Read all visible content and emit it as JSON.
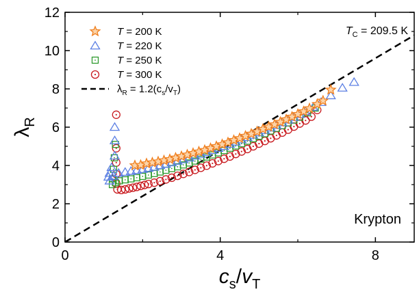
{
  "chart_data": {
    "type": "scatter",
    "xlim": [
      0,
      9
    ],
    "ylim": [
      0,
      12
    ],
    "x_ticks": [
      {
        "value": 0,
        "label": "0"
      },
      {
        "value": 4,
        "label": "4"
      },
      {
        "value": 8,
        "label": "8"
      }
    ],
    "y_ticks": [
      {
        "value": 0,
        "label": "0"
      },
      {
        "value": 2,
        "label": "2"
      },
      {
        "value": 4,
        "label": "4"
      },
      {
        "value": 6,
        "label": "6"
      },
      {
        "value": 8,
        "label": "8"
      },
      {
        "value": 10,
        "label": "10"
      },
      {
        "value": 12,
        "label": "12"
      }
    ],
    "xlabel": {
      "main": "c",
      "sub": "s",
      "sep": "/",
      "main2": "v",
      "sub2": "T"
    },
    "ylabel": {
      "main": "λ",
      "sub": "R"
    },
    "annotation_tc": {
      "var": "T",
      "sub": "C",
      "rest": " = 209.5 K"
    },
    "annotation_name": "Krypton",
    "legend_position": "top-left",
    "series": [
      {
        "name": "T = 200 K",
        "label_var": "T",
        "label_rest": " = 200 K",
        "marker": "star",
        "color": "#f07f1e",
        "fill": "#fbd3a8",
        "points": [
          [
            1.8,
            4.0
          ],
          [
            1.95,
            4.02
          ],
          [
            2.1,
            4.1
          ],
          [
            2.25,
            4.15
          ],
          [
            2.4,
            4.2
          ],
          [
            2.55,
            4.26
          ],
          [
            2.7,
            4.32
          ],
          [
            2.85,
            4.4
          ],
          [
            3.0,
            4.48
          ],
          [
            3.15,
            4.56
          ],
          [
            3.3,
            4.64
          ],
          [
            3.45,
            4.72
          ],
          [
            3.6,
            4.8
          ],
          [
            3.75,
            4.9
          ],
          [
            3.9,
            5.0
          ],
          [
            4.05,
            5.1
          ],
          [
            4.2,
            5.2
          ],
          [
            4.35,
            5.32
          ],
          [
            4.5,
            5.42
          ],
          [
            4.65,
            5.54
          ],
          [
            4.8,
            5.65
          ],
          [
            4.95,
            5.77
          ],
          [
            5.1,
            5.9
          ],
          [
            5.25,
            6.02
          ],
          [
            5.4,
            6.14
          ],
          [
            5.55,
            6.27
          ],
          [
            5.7,
            6.4
          ],
          [
            5.85,
            6.54
          ],
          [
            6.0,
            6.68
          ],
          [
            6.15,
            6.82
          ],
          [
            6.3,
            6.98
          ],
          [
            6.5,
            7.2
          ],
          [
            6.65,
            7.38
          ],
          [
            6.85,
            7.95
          ]
        ]
      },
      {
        "name": "T = 220 K",
        "label_var": "T",
        "label_rest": " = 220 K",
        "marker": "triangle",
        "color": "#5b7fe3",
        "fill": "none",
        "points": [
          [
            1.28,
            6.0
          ],
          [
            1.28,
            5.3
          ],
          [
            1.28,
            4.5
          ],
          [
            1.2,
            3.9
          ],
          [
            1.15,
            3.6
          ],
          [
            1.12,
            3.4
          ],
          [
            1.15,
            3.2
          ],
          [
            1.25,
            3.45
          ],
          [
            1.38,
            3.6
          ],
          [
            1.55,
            3.65
          ],
          [
            1.7,
            3.7
          ],
          [
            1.85,
            3.75
          ],
          [
            2.0,
            3.8
          ],
          [
            2.15,
            3.86
          ],
          [
            2.3,
            3.92
          ],
          [
            2.45,
            4.0
          ],
          [
            2.6,
            4.07
          ],
          [
            2.75,
            4.15
          ],
          [
            2.9,
            4.23
          ],
          [
            3.05,
            4.31
          ],
          [
            3.2,
            4.4
          ],
          [
            3.35,
            4.5
          ],
          [
            3.5,
            4.59
          ],
          [
            3.65,
            4.69
          ],
          [
            3.8,
            4.79
          ],
          [
            3.95,
            4.9
          ],
          [
            4.1,
            5.0
          ],
          [
            4.25,
            5.12
          ],
          [
            4.4,
            5.23
          ],
          [
            4.55,
            5.35
          ],
          [
            4.7,
            5.47
          ],
          [
            4.85,
            5.59
          ],
          [
            5.0,
            5.72
          ],
          [
            5.15,
            5.84
          ],
          [
            5.3,
            5.97
          ],
          [
            5.45,
            6.1
          ],
          [
            5.6,
            6.24
          ],
          [
            5.75,
            6.38
          ],
          [
            5.9,
            6.52
          ],
          [
            6.05,
            6.67
          ],
          [
            6.2,
            6.82
          ],
          [
            6.4,
            7.05
          ],
          [
            6.6,
            7.3
          ],
          [
            6.85,
            7.65
          ],
          [
            7.15,
            8.05
          ],
          [
            7.45,
            8.35
          ]
        ]
      },
      {
        "name": "T = 250 K",
        "label_var": "T",
        "label_rest": " = 250 K",
        "marker": "square",
        "color": "#2e9a2e",
        "fill": "none",
        "points": [
          [
            1.3,
            5.1
          ],
          [
            1.27,
            4.4
          ],
          [
            1.25,
            3.8
          ],
          [
            1.22,
            3.3
          ],
          [
            1.22,
            3.0
          ],
          [
            1.3,
            3.1
          ],
          [
            1.4,
            3.2
          ],
          [
            1.55,
            3.25
          ],
          [
            1.7,
            3.3
          ],
          [
            1.85,
            3.36
          ],
          [
            2.0,
            3.43
          ],
          [
            2.15,
            3.5
          ],
          [
            2.3,
            3.58
          ],
          [
            2.45,
            3.66
          ],
          [
            2.6,
            3.75
          ],
          [
            2.75,
            3.84
          ],
          [
            2.9,
            3.93
          ],
          [
            3.05,
            4.03
          ],
          [
            3.2,
            4.13
          ],
          [
            3.35,
            4.23
          ],
          [
            3.5,
            4.33
          ],
          [
            3.65,
            4.44
          ],
          [
            3.8,
            4.55
          ],
          [
            3.95,
            4.66
          ],
          [
            4.1,
            4.78
          ],
          [
            4.25,
            4.9
          ],
          [
            4.4,
            5.02
          ],
          [
            4.55,
            5.14
          ],
          [
            4.7,
            5.27
          ],
          [
            4.85,
            5.4
          ],
          [
            5.0,
            5.53
          ],
          [
            5.15,
            5.66
          ],
          [
            5.3,
            5.8
          ],
          [
            5.45,
            5.94
          ],
          [
            5.6,
            6.08
          ],
          [
            5.75,
            6.22
          ],
          [
            5.9,
            6.37
          ],
          [
            6.05,
            6.52
          ],
          [
            6.25,
            6.75
          ],
          [
            6.45,
            7.0
          ]
        ]
      },
      {
        "name": "T = 300 K",
        "label_var": "T",
        "label_rest": " = 300 K",
        "marker": "circle",
        "color": "#c8191e",
        "fill": "none",
        "points": [
          [
            1.32,
            6.65
          ],
          [
            1.32,
            4.9
          ],
          [
            1.32,
            4.15
          ],
          [
            1.32,
            3.55
          ],
          [
            1.32,
            3.05
          ],
          [
            1.35,
            2.75
          ],
          [
            1.45,
            2.72
          ],
          [
            1.55,
            2.75
          ],
          [
            1.65,
            2.8
          ],
          [
            1.75,
            2.84
          ],
          [
            1.85,
            2.88
          ],
          [
            1.95,
            2.93
          ],
          [
            2.05,
            2.98
          ],
          [
            2.15,
            3.03
          ],
          [
            2.3,
            3.1
          ],
          [
            2.45,
            3.18
          ],
          [
            2.6,
            3.27
          ],
          [
            2.75,
            3.36
          ],
          [
            2.9,
            3.46
          ],
          [
            3.05,
            3.56
          ],
          [
            3.2,
            3.66
          ],
          [
            3.35,
            3.77
          ],
          [
            3.5,
            3.88
          ],
          [
            3.65,
            3.99
          ],
          [
            3.8,
            4.11
          ],
          [
            3.95,
            4.23
          ],
          [
            4.1,
            4.35
          ],
          [
            4.25,
            4.47
          ],
          [
            4.4,
            4.6
          ],
          [
            4.55,
            4.73
          ],
          [
            4.7,
            4.86
          ],
          [
            4.85,
            5.0
          ],
          [
            5.0,
            5.14
          ],
          [
            5.15,
            5.28
          ],
          [
            5.3,
            5.42
          ],
          [
            5.45,
            5.57
          ],
          [
            5.6,
            5.72
          ],
          [
            5.75,
            5.87
          ],
          [
            5.9,
            6.03
          ],
          [
            6.05,
            6.19
          ],
          [
            6.2,
            6.35
          ],
          [
            6.35,
            6.55
          ],
          [
            6.5,
            6.9
          ]
        ]
      },
      {
        "name": "λR = 1.2(cs/vT)",
        "label_var": "λ",
        "label_sub": "R",
        "label_rest": " = 1.2(c",
        "label_sub2": "s",
        "label_rest2": "/v",
        "label_sub3": "T",
        "label_rest3": ")",
        "marker": "dashed-line",
        "color": "#000000",
        "slope": 1.2,
        "x": [
          0,
          9
        ]
      }
    ]
  }
}
